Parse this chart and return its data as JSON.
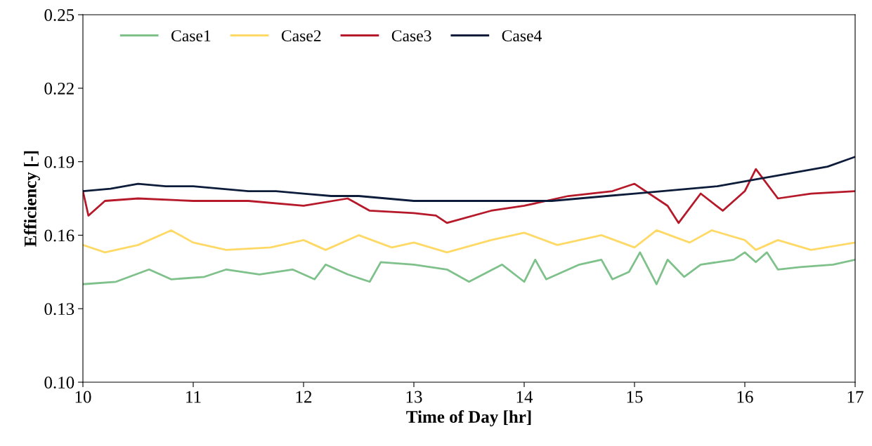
{
  "chart_data": {
    "type": "line",
    "xlabel": "Time of Day [hr]",
    "ylabel": "Efficiency [-]",
    "xlim": [
      10,
      17
    ],
    "xticks": [
      10,
      11,
      12,
      13,
      14,
      15,
      16,
      17
    ],
    "ylim": [
      0.1,
      0.25
    ],
    "yticks": [
      {
        "value": 0.1,
        "label": "0.10"
      },
      {
        "value": 0.13,
        "label": "0.13"
      },
      {
        "value": 0.16,
        "label": "0.16"
      },
      {
        "value": 0.19,
        "label": "0.19"
      },
      {
        "value": 0.22,
        "label": "0.22"
      },
      {
        "value": 0.25,
        "label": "0.25"
      }
    ],
    "grid": false,
    "legend": "top left",
    "marker": "none",
    "line_style": "solid",
    "series": [
      {
        "name": "Case1",
        "color": "#7fc18b",
        "x": [
          10,
          10.3,
          10.6,
          10.8,
          11.1,
          11.3,
          11.6,
          11.9,
          12.1,
          12.2,
          12.4,
          12.6,
          12.7,
          13,
          13.3,
          13.5,
          13.8,
          14,
          14.1,
          14.2,
          14.5,
          14.7,
          14.8,
          14.95,
          15.05,
          15.2,
          15.3,
          15.45,
          15.6,
          15.9,
          16,
          16.1,
          16.2,
          16.3,
          16.5,
          16.8,
          17
        ],
        "values": [
          0.14,
          0.141,
          0.146,
          0.142,
          0.143,
          0.146,
          0.144,
          0.146,
          0.142,
          0.148,
          0.144,
          0.141,
          0.149,
          0.148,
          0.146,
          0.141,
          0.148,
          0.141,
          0.15,
          0.142,
          0.148,
          0.15,
          0.142,
          0.145,
          0.153,
          0.14,
          0.15,
          0.143,
          0.148,
          0.15,
          0.153,
          0.149,
          0.153,
          0.146,
          0.147,
          0.148,
          0.15
        ]
      },
      {
        "name": "Case2",
        "color": "#ffd966",
        "x": [
          10,
          10.2,
          10.5,
          10.8,
          11,
          11.3,
          11.7,
          12,
          12.2,
          12.5,
          12.8,
          13,
          13.3,
          13.7,
          14,
          14.3,
          14.7,
          15,
          15.2,
          15.5,
          15.7,
          16,
          16.1,
          16.3,
          16.6,
          17
        ],
        "values": [
          0.156,
          0.153,
          0.156,
          0.162,
          0.157,
          0.154,
          0.155,
          0.158,
          0.154,
          0.16,
          0.155,
          0.157,
          0.153,
          0.158,
          0.161,
          0.156,
          0.16,
          0.155,
          0.162,
          0.157,
          0.162,
          0.158,
          0.154,
          0.158,
          0.154,
          0.157
        ]
      },
      {
        "name": "Case3",
        "color": "#b5192a",
        "x": [
          10,
          10.05,
          10.2,
          10.5,
          11,
          11.5,
          12,
          12.4,
          12.6,
          13,
          13.2,
          13.3,
          13.7,
          14,
          14.4,
          14.8,
          15,
          15.3,
          15.4,
          15.6,
          15.8,
          16,
          16.1,
          16.3,
          16.6,
          17
        ],
        "values": [
          0.178,
          0.168,
          0.174,
          0.175,
          0.174,
          0.174,
          0.172,
          0.175,
          0.17,
          0.169,
          0.168,
          0.165,
          0.17,
          0.172,
          0.176,
          0.178,
          0.181,
          0.172,
          0.165,
          0.177,
          0.17,
          0.178,
          0.187,
          0.175,
          0.177,
          0.178
        ]
      },
      {
        "name": "Case4",
        "color": "#0d1c3a",
        "x": [
          10,
          10.25,
          10.5,
          10.75,
          11,
          11.25,
          11.5,
          11.75,
          12,
          12.25,
          12.5,
          12.75,
          13,
          13.25,
          13.5,
          13.75,
          14,
          14.25,
          14.5,
          14.75,
          15,
          15.25,
          15.5,
          15.75,
          16,
          16.25,
          16.5,
          16.75,
          17
        ],
        "values": [
          0.178,
          0.179,
          0.181,
          0.18,
          0.18,
          0.179,
          0.178,
          0.178,
          0.177,
          0.176,
          0.176,
          0.175,
          0.174,
          0.174,
          0.174,
          0.174,
          0.174,
          0.174,
          0.175,
          0.176,
          0.177,
          0.178,
          0.179,
          0.18,
          0.182,
          0.184,
          0.186,
          0.188,
          0.192
        ]
      }
    ]
  }
}
